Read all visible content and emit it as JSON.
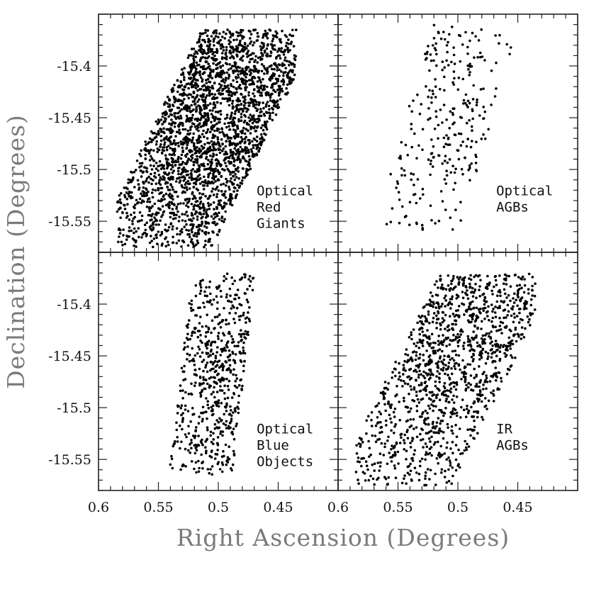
{
  "chart_data": {
    "type": "scatter",
    "xlabel": "Right Ascension (Degrees)",
    "ylabel": "Declination (Degrees)",
    "xlim": [
      0.6,
      0.4
    ],
    "ylim": [
      -15.58,
      -15.35
    ],
    "x_ticks": [
      0.6,
      0.55,
      0.5,
      0.45
    ],
    "x_tick_labels": [
      "0.6",
      "0.55",
      "0.5",
      "0.45"
    ],
    "y_ticks": [
      -15.4,
      -15.45,
      -15.5,
      -15.55
    ],
    "y_tick_labels": [
      "-15.4",
      "-15.45",
      "-15.5",
      "-15.55"
    ],
    "grid": false,
    "panels": [
      {
        "annotation": [
          "Optical",
          "Red",
          "Giants"
        ],
        "count": 2600,
        "x_range": [
          0.435,
          0.585
        ],
        "y_range": [
          -15.575,
          -15.365
        ],
        "density_peak": [
          0.505,
          -15.44
        ]
      },
      {
        "annotation": [
          "Optical",
          "AGBs"
        ],
        "count": 280,
        "x_range": [
          0.455,
          0.565
        ],
        "y_range": [
          -15.56,
          -15.36
        ],
        "density_peak": [
          0.505,
          -15.44
        ]
      },
      {
        "annotation": [
          "Optical",
          "Blue",
          "Objects"
        ],
        "count": 620,
        "x_range": [
          0.465,
          0.545
        ],
        "y_range": [
          -15.565,
          -15.37
        ],
        "density_peak": [
          0.495,
          -15.46
        ]
      },
      {
        "annotation": [
          "IR",
          "AGBs"
        ],
        "count": 1300,
        "x_range": [
          0.435,
          0.585
        ],
        "y_range": [
          -15.575,
          -15.37
        ],
        "density_peak": [
          0.505,
          -15.44
        ]
      }
    ]
  }
}
